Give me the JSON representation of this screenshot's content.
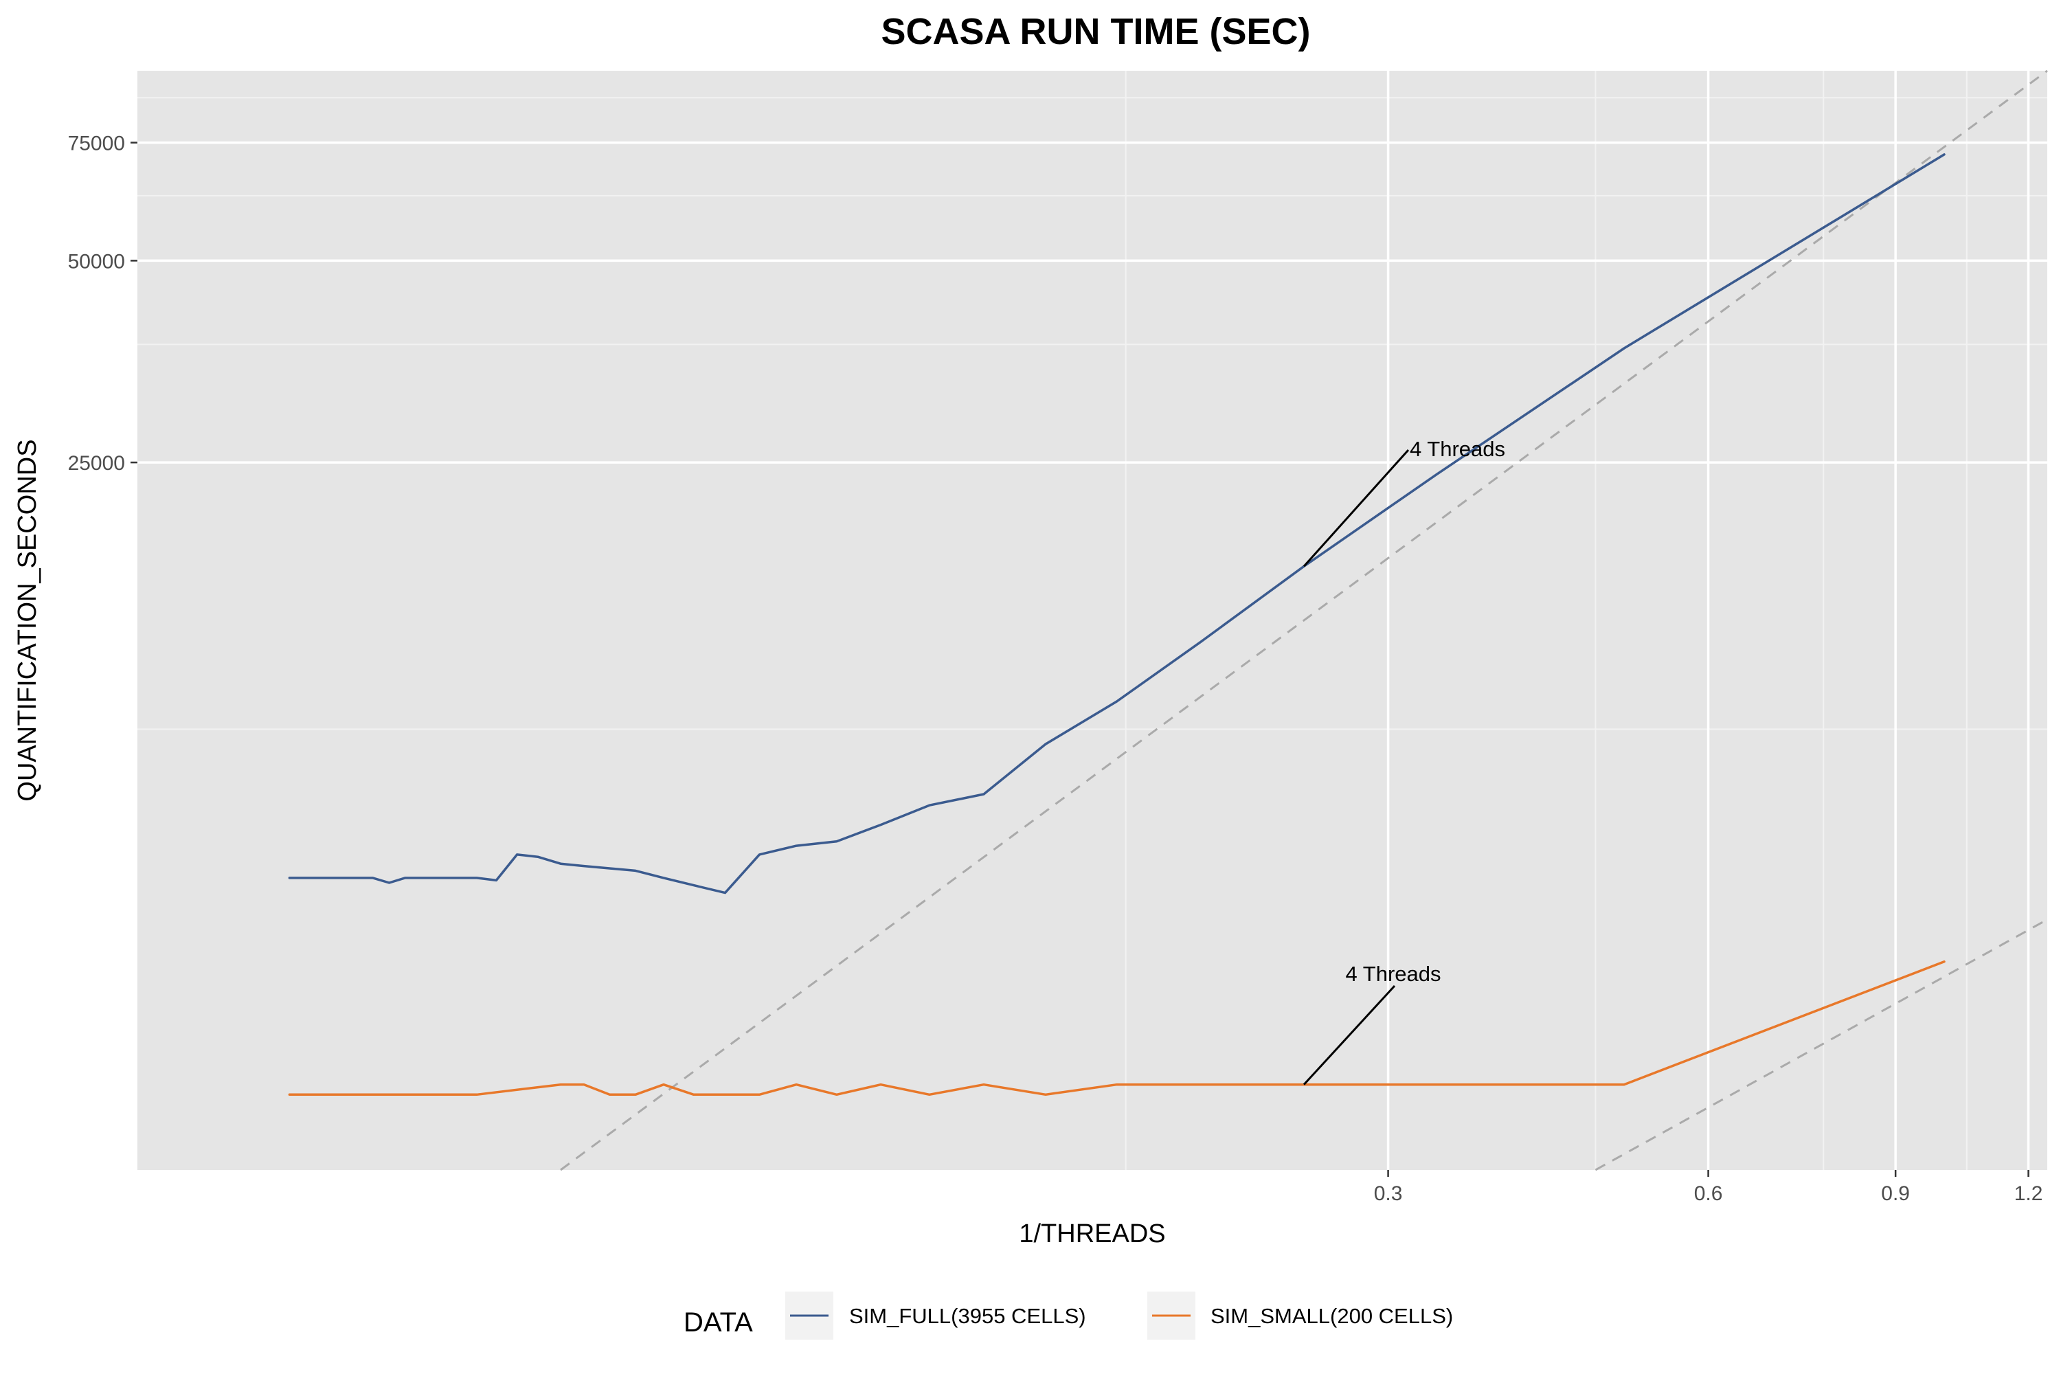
{
  "chart_data": {
    "type": "line",
    "title": "SCASA RUN TIME (SEC)",
    "xlabel": "1/THREADS",
    "ylabel": "QUANTIFICATION_SECONDS",
    "x_scale": "log",
    "y_scale": "log",
    "xlim": [
      0.02,
      1.25
    ],
    "ylim": [
      2200,
      96000
    ],
    "x_ticks": [
      0.3,
      0.6,
      0.9,
      1.2
    ],
    "x_tick_labels": [
      "0.3",
      "0.6",
      "0.9",
      "1.2"
    ],
    "y_ticks": [
      25000,
      50000,
      75000
    ],
    "y_tick_labels": [
      "25000",
      "50000",
      "75000"
    ],
    "x_minor_grid": [
      0.17,
      0.47,
      0.77,
      1.05
    ],
    "y_minor_grid": [
      10000,
      37500,
      62500,
      87500
    ],
    "grid": true,
    "legend_position": "bottom",
    "legend_title": "DATA",
    "series": [
      {
        "name": "SIM_FULL(3955 CELLS)",
        "color": "#3b5b8f",
        "x": [
          0.0278,
          0.0333,
          0.0345,
          0.0357,
          0.0417,
          0.0435,
          0.0455,
          0.0476,
          0.05,
          0.0526,
          0.0556,
          0.0588,
          0.0625,
          0.0667,
          0.0714,
          0.0769,
          0.0833,
          0.0909,
          0.1,
          0.1111,
          0.125,
          0.1429,
          0.1667,
          0.2,
          0.25,
          0.3333,
          0.5,
          1.0
        ],
        "y": [
          6000,
          6000,
          5900,
          6000,
          6000,
          5950,
          6500,
          6450,
          6300,
          6250,
          6200,
          6150,
          6000,
          5850,
          5700,
          6500,
          6700,
          6800,
          7200,
          7700,
          8000,
          9500,
          11000,
          13500,
          17500,
          24000,
          37000,
          72000
        ]
      },
      {
        "name": "SIM_SMALL(200 CELLS)",
        "color": "#e8782a",
        "x": [
          0.0278,
          0.0345,
          0.0417,
          0.05,
          0.0526,
          0.0556,
          0.0588,
          0.0625,
          0.0667,
          0.0714,
          0.0769,
          0.0833,
          0.0909,
          0.1,
          0.1111,
          0.125,
          0.1429,
          0.1667,
          0.2,
          0.25,
          0.3333,
          0.5,
          1.0
        ],
        "y": [
          2850,
          2850,
          2850,
          2950,
          2950,
          2850,
          2850,
          2950,
          2850,
          2850,
          2850,
          2950,
          2850,
          2950,
          2850,
          2950,
          2850,
          2950,
          2950,
          2950,
          2950,
          2950,
          4500
        ]
      }
    ],
    "reference_lines": [
      {
        "style": "dashed",
        "color": "#aaaaaa",
        "x": [
          0.05,
          1.25
        ],
        "y": [
          2200,
          96000
        ]
      },
      {
        "style": "dashed",
        "color": "#aaaaaa",
        "x": [
          0.47,
          1.25
        ],
        "y": [
          2200,
          5200
        ]
      }
    ],
    "annotations": [
      {
        "text": "4 Threads",
        "x": 0.25,
        "y": 17500
      },
      {
        "text": "4 Threads",
        "x": 0.25,
        "y": 2950
      }
    ]
  }
}
